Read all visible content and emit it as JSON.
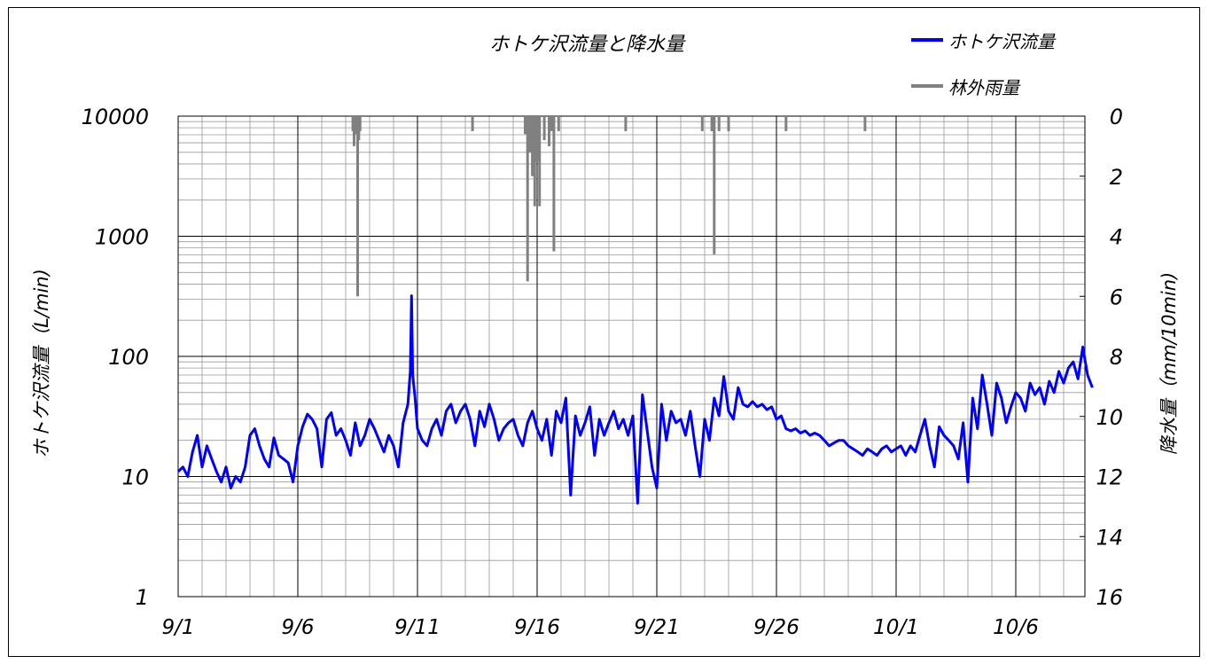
{
  "chart_data": {
    "type": "line",
    "title": "ホトケ沢流量と降水量",
    "ylabel_left": "ホトケ沢流量（L/min)",
    "ylabel_right": "降水量（mm/10min)",
    "x_tick_labels": [
      "9/1",
      "9/6",
      "9/11",
      "9/16",
      "9/21",
      "9/26",
      "10/1",
      "10/6"
    ],
    "x_range_days": [
      0,
      38
    ],
    "y_left_scale": "log",
    "y_left_ticks": [
      "1",
      "10",
      "100",
      "1000",
      "10000"
    ],
    "y_left_range": [
      1,
      10000
    ],
    "y_right_ticks": [
      "0",
      "2",
      "4",
      "6",
      "8",
      "10",
      "12",
      "14",
      "16"
    ],
    "y_right_range": [
      0,
      16
    ],
    "y_right_inverted": true,
    "grid": true,
    "legend_position": "top-right",
    "series": [
      {
        "name": "ホトケ沢流量",
        "color": "#0000ff",
        "axis": "left",
        "points": [
          [
            0.0,
            11
          ],
          [
            0.2,
            12
          ],
          [
            0.4,
            10
          ],
          [
            0.6,
            16
          ],
          [
            0.8,
            22
          ],
          [
            1.0,
            12
          ],
          [
            1.2,
            18
          ],
          [
            1.4,
            14
          ],
          [
            1.6,
            11
          ],
          [
            1.8,
            9
          ],
          [
            2.0,
            12
          ],
          [
            2.2,
            8
          ],
          [
            2.4,
            10
          ],
          [
            2.6,
            9
          ],
          [
            2.8,
            12
          ],
          [
            3.0,
            22
          ],
          [
            3.2,
            25
          ],
          [
            3.4,
            18
          ],
          [
            3.6,
            14
          ],
          [
            3.8,
            12
          ],
          [
            4.0,
            21
          ],
          [
            4.2,
            15
          ],
          [
            4.4,
            14
          ],
          [
            4.6,
            13
          ],
          [
            4.8,
            9
          ],
          [
            5.0,
            18
          ],
          [
            5.2,
            26
          ],
          [
            5.4,
            33
          ],
          [
            5.6,
            30
          ],
          [
            5.8,
            25
          ],
          [
            6.0,
            12
          ],
          [
            6.2,
            30
          ],
          [
            6.4,
            34
          ],
          [
            6.6,
            22
          ],
          [
            6.8,
            25
          ],
          [
            7.0,
            20
          ],
          [
            7.2,
            15
          ],
          [
            7.4,
            28
          ],
          [
            7.6,
            18
          ],
          [
            7.8,
            22
          ],
          [
            8.0,
            30
          ],
          [
            8.2,
            25
          ],
          [
            8.4,
            20
          ],
          [
            8.6,
            16
          ],
          [
            8.8,
            22
          ],
          [
            9.0,
            18
          ],
          [
            9.2,
            12
          ],
          [
            9.4,
            28
          ],
          [
            9.6,
            40
          ],
          [
            9.7,
            75
          ],
          [
            9.75,
            320
          ],
          [
            9.8,
            70
          ],
          [
            9.9,
            45
          ],
          [
            10.0,
            25
          ],
          [
            10.2,
            20
          ],
          [
            10.4,
            18
          ],
          [
            10.6,
            25
          ],
          [
            10.8,
            30
          ],
          [
            11.0,
            22
          ],
          [
            11.2,
            35
          ],
          [
            11.4,
            40
          ],
          [
            11.6,
            28
          ],
          [
            11.8,
            35
          ],
          [
            12.0,
            40
          ],
          [
            12.2,
            30
          ],
          [
            12.4,
            18
          ],
          [
            12.6,
            35
          ],
          [
            12.8,
            26
          ],
          [
            13.0,
            40
          ],
          [
            13.2,
            30
          ],
          [
            13.4,
            20
          ],
          [
            13.6,
            25
          ],
          [
            13.8,
            28
          ],
          [
            14.0,
            30
          ],
          [
            14.2,
            22
          ],
          [
            14.4,
            18
          ],
          [
            14.6,
            28
          ],
          [
            14.8,
            35
          ],
          [
            15.0,
            25
          ],
          [
            15.2,
            20
          ],
          [
            15.4,
            30
          ],
          [
            15.6,
            15
          ],
          [
            15.8,
            35
          ],
          [
            16.0,
            28
          ],
          [
            16.2,
            45
          ],
          [
            16.4,
            7
          ],
          [
            16.6,
            32
          ],
          [
            16.8,
            22
          ],
          [
            17.0,
            28
          ],
          [
            17.2,
            38
          ],
          [
            17.4,
            15
          ],
          [
            17.6,
            30
          ],
          [
            17.8,
            22
          ],
          [
            18.0,
            28
          ],
          [
            18.2,
            35
          ],
          [
            18.4,
            25
          ],
          [
            18.6,
            30
          ],
          [
            18.8,
            22
          ],
          [
            19.0,
            32
          ],
          [
            19.2,
            6
          ],
          [
            19.4,
            48
          ],
          [
            19.6,
            24
          ],
          [
            19.8,
            12
          ],
          [
            20.0,
            8
          ],
          [
            20.2,
            40
          ],
          [
            20.4,
            20
          ],
          [
            20.6,
            35
          ],
          [
            20.8,
            28
          ],
          [
            21.0,
            30
          ],
          [
            21.2,
            22
          ],
          [
            21.4,
            35
          ],
          [
            21.6,
            18
          ],
          [
            21.8,
            10
          ],
          [
            22.0,
            30
          ],
          [
            22.2,
            20
          ],
          [
            22.4,
            45
          ],
          [
            22.6,
            32
          ],
          [
            22.8,
            68
          ],
          [
            23.0,
            35
          ],
          [
            23.2,
            30
          ],
          [
            23.4,
            55
          ],
          [
            23.6,
            40
          ],
          [
            23.8,
            38
          ],
          [
            24.0,
            42
          ],
          [
            24.2,
            38
          ],
          [
            24.4,
            40
          ],
          [
            24.6,
            36
          ],
          [
            24.8,
            38
          ],
          [
            25.0,
            30
          ],
          [
            25.2,
            32
          ],
          [
            25.4,
            25
          ],
          [
            25.6,
            24
          ],
          [
            25.8,
            25
          ],
          [
            26.0,
            23
          ],
          [
            26.2,
            24
          ],
          [
            26.4,
            22
          ],
          [
            26.6,
            23
          ],
          [
            26.8,
            22
          ],
          [
            27.0,
            20
          ],
          [
            27.2,
            18
          ],
          [
            27.4,
            19
          ],
          [
            27.6,
            20
          ],
          [
            27.8,
            20
          ],
          [
            28.0,
            18
          ],
          [
            28.2,
            17
          ],
          [
            28.4,
            16
          ],
          [
            28.6,
            15
          ],
          [
            28.8,
            17
          ],
          [
            29.0,
            16
          ],
          [
            29.2,
            15
          ],
          [
            29.4,
            17
          ],
          [
            29.6,
            18
          ],
          [
            29.8,
            16
          ],
          [
            30.0,
            17
          ],
          [
            30.2,
            18
          ],
          [
            30.4,
            15
          ],
          [
            30.6,
            18
          ],
          [
            30.8,
            16
          ],
          [
            31.0,
            22
          ],
          [
            31.2,
            30
          ],
          [
            31.4,
            18
          ],
          [
            31.6,
            12
          ],
          [
            31.8,
            26
          ],
          [
            32.0,
            22
          ],
          [
            32.2,
            20
          ],
          [
            32.4,
            18
          ],
          [
            32.6,
            14
          ],
          [
            32.8,
            28
          ],
          [
            33.0,
            9
          ],
          [
            33.2,
            45
          ],
          [
            33.4,
            25
          ],
          [
            33.6,
            70
          ],
          [
            33.8,
            40
          ],
          [
            34.0,
            22
          ],
          [
            34.2,
            60
          ],
          [
            34.4,
            45
          ],
          [
            34.6,
            28
          ],
          [
            34.8,
            38
          ],
          [
            35.0,
            50
          ],
          [
            35.2,
            45
          ],
          [
            35.4,
            35
          ],
          [
            35.6,
            60
          ],
          [
            35.8,
            48
          ],
          [
            36.0,
            55
          ],
          [
            36.2,
            40
          ],
          [
            36.4,
            62
          ],
          [
            36.6,
            50
          ],
          [
            36.8,
            75
          ],
          [
            37.0,
            60
          ],
          [
            37.2,
            80
          ],
          [
            37.4,
            90
          ],
          [
            37.6,
            65
          ],
          [
            37.8,
            120
          ],
          [
            38.0,
            70
          ],
          [
            38.2,
            55
          ]
        ]
      },
      {
        "name": "林外雨量",
        "color": "#808080",
        "axis": "right",
        "points": [
          [
            7.3,
            0.5
          ],
          [
            7.35,
            1.0
          ],
          [
            7.45,
            0.6
          ],
          [
            7.5,
            6.0
          ],
          [
            7.55,
            0.8
          ],
          [
            7.6,
            0.5
          ],
          [
            12.3,
            0.5
          ],
          [
            14.5,
            0.6
          ],
          [
            14.6,
            5.5
          ],
          [
            14.7,
            1.2
          ],
          [
            14.8,
            2.0
          ],
          [
            14.9,
            3.0
          ],
          [
            15.0,
            1.5
          ],
          [
            15.1,
            3.0
          ],
          [
            15.3,
            0.8
          ],
          [
            15.5,
            1.0
          ],
          [
            15.6,
            0.5
          ],
          [
            15.7,
            4.5
          ],
          [
            15.9,
            0.5
          ],
          [
            18.7,
            0.5
          ],
          [
            21.9,
            0.5
          ],
          [
            22.3,
            0.5
          ],
          [
            22.4,
            4.6
          ],
          [
            22.6,
            0.5
          ],
          [
            23.0,
            0.5
          ],
          [
            25.4,
            0.5
          ],
          [
            28.7,
            0.5
          ]
        ]
      }
    ]
  }
}
